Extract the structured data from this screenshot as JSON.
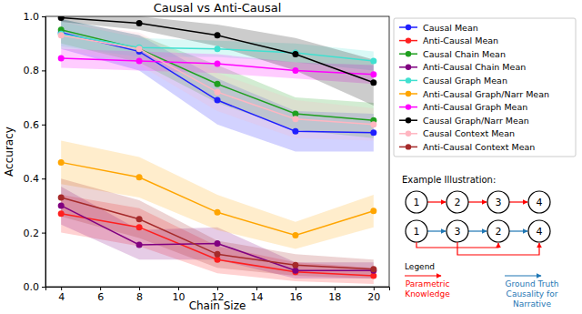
{
  "chart_data": {
    "type": "line",
    "title": "Causal vs Anti-Causal",
    "x_label": "Chain Size",
    "y_label": "Accuracy",
    "x": [
      4,
      8,
      12,
      16,
      20
    ],
    "xlim": [
      3.2,
      20.8
    ],
    "xticks": [
      4,
      6,
      8,
      10,
      12,
      14,
      16,
      18,
      20
    ],
    "ylim": [
      0,
      1
    ],
    "yticks": [
      {
        "value": 0,
        "label": "0.0"
      },
      {
        "value": 0.2,
        "label": "0.2"
      },
      {
        "value": 0.4,
        "label": "0.4"
      },
      {
        "value": 0.6,
        "label": "0.6"
      },
      {
        "value": 0.8,
        "label": "0.8"
      },
      {
        "value": 1,
        "label": "1.0"
      }
    ],
    "grid": false,
    "legend": "right",
    "marker": "circle",
    "series": [
      {
        "name": "Causal Mean",
        "color": "#1f1fff",
        "values": [
          0.94,
          0.87,
          0.69,
          0.575,
          0.57
        ],
        "lower": [
          0.88,
          0.8,
          0.6,
          0.5,
          0.5
        ],
        "upper": [
          0.99,
          0.93,
          0.77,
          0.65,
          0.64
        ]
      },
      {
        "name": "Anti-Causal Mean",
        "color": "#ff1f1f",
        "values": [
          0.27,
          0.22,
          0.1,
          0.055,
          0.04
        ],
        "lower": [
          0.2,
          0.15,
          0.05,
          0.02,
          0.01
        ],
        "upper": [
          0.34,
          0.29,
          0.15,
          0.09,
          0.07
        ]
      },
      {
        "name": "Causal Chain Mean",
        "color": "#1f9f1f",
        "values": [
          0.95,
          0.88,
          0.75,
          0.64,
          0.615
        ],
        "lower": [
          0.9,
          0.83,
          0.68,
          0.58,
          0.55
        ],
        "upper": [
          0.99,
          0.93,
          0.82,
          0.7,
          0.68
        ]
      },
      {
        "name": "Anti-Causal Chain Mean",
        "color": "#800080",
        "values": [
          0.3,
          0.155,
          0.16,
          0.06,
          0.06
        ],
        "lower": [
          0.23,
          0.1,
          0.1,
          0.03,
          0.03
        ],
        "upper": [
          0.37,
          0.21,
          0.22,
          0.09,
          0.09
        ]
      },
      {
        "name": "Causal Graph Mean",
        "color": "#40e0d0",
        "values": [
          0.935,
          0.885,
          0.88,
          0.865,
          0.835
        ],
        "lower": [
          0.89,
          0.85,
          0.85,
          0.83,
          0.8
        ],
        "upper": [
          0.98,
          0.92,
          0.91,
          0.9,
          0.87
        ]
      },
      {
        "name": "Anti-Causal Graph/Narr Mean",
        "color": "#ffa500",
        "values": [
          0.46,
          0.405,
          0.275,
          0.19,
          0.28
        ],
        "lower": [
          0.38,
          0.33,
          0.21,
          0.14,
          0.22
        ],
        "upper": [
          0.54,
          0.48,
          0.34,
          0.24,
          0.34
        ]
      },
      {
        "name": "Anti-Causal Graph Mean",
        "color": "#ff00ff",
        "values": [
          0.845,
          0.835,
          0.825,
          0.8,
          0.785
        ],
        "lower": [
          0.81,
          0.8,
          0.79,
          0.77,
          0.75
        ],
        "upper": [
          0.88,
          0.87,
          0.86,
          0.83,
          0.82
        ]
      },
      {
        "name": "Causal Graph/Narr Mean",
        "color": "#000000",
        "values": [
          0.995,
          0.975,
          0.93,
          0.86,
          0.755
        ],
        "lower": [
          0.98,
          0.95,
          0.89,
          0.8,
          0.67
        ],
        "upper": [
          1.0,
          1.0,
          0.97,
          0.92,
          0.84
        ]
      },
      {
        "name": "Causal Context Mean",
        "color": "#ffb6c1",
        "values": [
          0.93,
          0.88,
          0.72,
          0.62,
          0.6
        ],
        "lower": [
          0.88,
          0.82,
          0.65,
          0.55,
          0.54
        ],
        "upper": [
          0.98,
          0.94,
          0.79,
          0.69,
          0.66
        ]
      },
      {
        "name": "Anti-Causal Context Mean",
        "color": "#a52a2a",
        "values": [
          0.33,
          0.25,
          0.12,
          0.08,
          0.065
        ],
        "lower": [
          0.26,
          0.18,
          0.07,
          0.04,
          0.03
        ],
        "upper": [
          0.4,
          0.32,
          0.17,
          0.12,
          0.1
        ]
      }
    ],
    "illustration": {
      "title": "Example Illustration:",
      "rows": [
        [
          1,
          2,
          3,
          4
        ],
        [
          1,
          3,
          2,
          4
        ]
      ],
      "legend_title": "Legend",
      "legend": [
        {
          "lines": [
            "Parametric",
            "Knowledge"
          ],
          "color": "#ff0000"
        },
        {
          "lines": [
            "Ground Truth",
            "Causality for",
            "Narrative"
          ],
          "color": "#1f77b4"
        }
      ]
    }
  }
}
